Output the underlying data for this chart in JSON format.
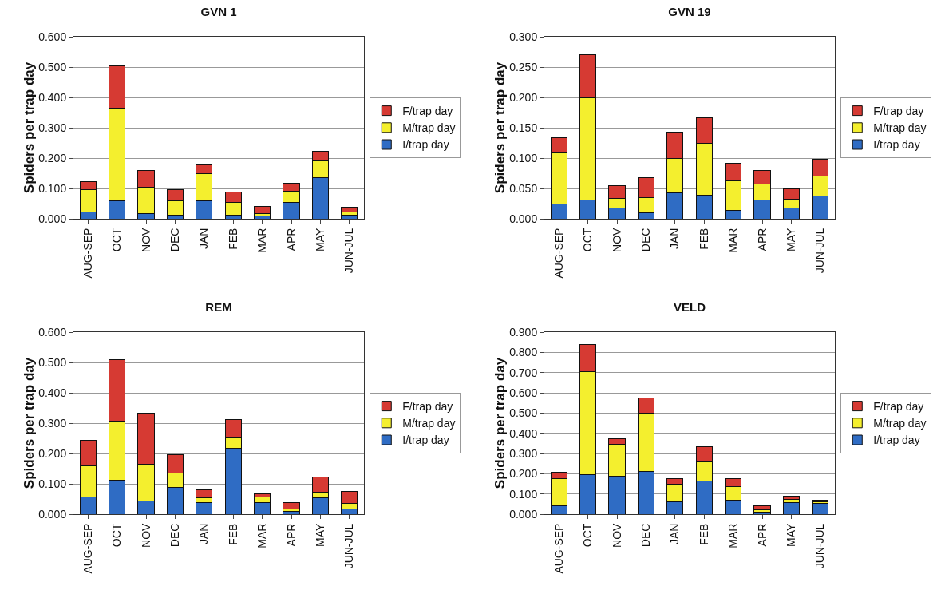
{
  "chart_data": [
    {
      "type": "bar",
      "title": "GVN 1",
      "ylabel": "Spiders per trap day",
      "stacked": true,
      "grid": "y",
      "legend": "right",
      "categories": [
        "AUG-SEP",
        "OCT",
        "NOV",
        "DEC",
        "JAN",
        "FEB",
        "MAR",
        "APR",
        "MAY",
        "JUN-JUL"
      ],
      "ylim": [
        0,
        0.6
      ],
      "yticks": [
        {
          "value": 0,
          "label": "0.000"
        },
        {
          "value": 0.1,
          "label": "0.100"
        },
        {
          "value": 0.2,
          "label": "0.200"
        },
        {
          "value": 0.3,
          "label": "0.300"
        },
        {
          "value": 0.4,
          "label": "0.400"
        },
        {
          "value": 0.5,
          "label": "0.500"
        },
        {
          "value": 0.6,
          "label": "0.600"
        }
      ],
      "series": [
        {
          "name": "I/trap day",
          "color": "#2f6cc4",
          "values": [
            0.022,
            0.06,
            0.018,
            0.013,
            0.058,
            0.013,
            0.008,
            0.053,
            0.135,
            0.012
          ]
        },
        {
          "name": "M/trap day",
          "color": "#f4ef2e",
          "values": [
            0.073,
            0.305,
            0.085,
            0.045,
            0.09,
            0.04,
            0.008,
            0.037,
            0.057,
            0.011
          ]
        },
        {
          "name": "F/trap day",
          "color": "#d63a33",
          "values": [
            0.027,
            0.14,
            0.055,
            0.039,
            0.03,
            0.035,
            0.024,
            0.026,
            0.03,
            0.015
          ]
        }
      ]
    },
    {
      "type": "bar",
      "title": "GVN 19",
      "ylabel": "Spiders per trap day",
      "stacked": true,
      "grid": "y",
      "legend": "right",
      "categories": [
        "AUG-SEP",
        "OCT",
        "NOV",
        "DEC",
        "JAN",
        "FEB",
        "MAR",
        "APR",
        "MAY",
        "JUN-JUL"
      ],
      "ylim": [
        0,
        0.3
      ],
      "yticks": [
        {
          "value": 0,
          "label": "0.000"
        },
        {
          "value": 0.05,
          "label": "0.050"
        },
        {
          "value": 0.1,
          "label": "0.100"
        },
        {
          "value": 0.15,
          "label": "0.150"
        },
        {
          "value": 0.2,
          "label": "0.200"
        },
        {
          "value": 0.25,
          "label": "0.250"
        },
        {
          "value": 0.3,
          "label": "0.300"
        }
      ],
      "series": [
        {
          "name": "I/trap day",
          "color": "#2f6cc4",
          "values": [
            0.024,
            0.031,
            0.018,
            0.01,
            0.043,
            0.039,
            0.014,
            0.031,
            0.018,
            0.037
          ]
        },
        {
          "name": "M/trap day",
          "color": "#f4ef2e",
          "values": [
            0.084,
            0.169,
            0.016,
            0.025,
            0.056,
            0.086,
            0.049,
            0.026,
            0.014,
            0.034
          ]
        },
        {
          "name": "F/trap day",
          "color": "#d63a33",
          "values": [
            0.026,
            0.07,
            0.02,
            0.033,
            0.044,
            0.041,
            0.028,
            0.023,
            0.017,
            0.027
          ]
        }
      ]
    },
    {
      "type": "bar",
      "title": "REM",
      "ylabel": "Spiders per trap day",
      "stacked": true,
      "grid": "y",
      "legend": "right",
      "categories": [
        "AUG-SEP",
        "OCT",
        "NOV",
        "DEC",
        "JAN",
        "FEB",
        "MAR",
        "APR",
        "MAY",
        "JUN-JUL"
      ],
      "ylim": [
        0,
        0.6
      ],
      "yticks": [
        {
          "value": 0,
          "label": "0.000"
        },
        {
          "value": 0.1,
          "label": "0.100"
        },
        {
          "value": 0.2,
          "label": "0.200"
        },
        {
          "value": 0.3,
          "label": "0.300"
        },
        {
          "value": 0.4,
          "label": "0.400"
        },
        {
          "value": 0.5,
          "label": "0.500"
        },
        {
          "value": 0.6,
          "label": "0.600"
        }
      ],
      "series": [
        {
          "name": "I/trap day",
          "color": "#2f6cc4",
          "values": [
            0.056,
            0.112,
            0.043,
            0.088,
            0.038,
            0.218,
            0.038,
            0.008,
            0.053,
            0.016
          ]
        },
        {
          "name": "M/trap day",
          "color": "#f4ef2e",
          "values": [
            0.104,
            0.195,
            0.122,
            0.047,
            0.015,
            0.036,
            0.019,
            0.01,
            0.019,
            0.02
          ]
        },
        {
          "name": "F/trap day",
          "color": "#d63a33",
          "values": [
            0.084,
            0.201,
            0.167,
            0.06,
            0.027,
            0.058,
            0.01,
            0.02,
            0.051,
            0.038
          ]
        }
      ]
    },
    {
      "type": "bar",
      "title": "VELD",
      "ylabel": "Spiders per trap day",
      "stacked": true,
      "grid": "y",
      "legend": "right",
      "categories": [
        "AUG-SEP",
        "OCT",
        "NOV",
        "DEC",
        "JAN",
        "FEB",
        "MAR",
        "APR",
        "MAY",
        "JUN-JUL"
      ],
      "ylim": [
        0,
        0.9
      ],
      "yticks": [
        {
          "value": 0,
          "label": "0.000"
        },
        {
          "value": 0.1,
          "label": "0.100"
        },
        {
          "value": 0.2,
          "label": "0.200"
        },
        {
          "value": 0.3,
          "label": "0.300"
        },
        {
          "value": 0.4,
          "label": "0.400"
        },
        {
          "value": 0.5,
          "label": "0.500"
        },
        {
          "value": 0.6,
          "label": "0.600"
        },
        {
          "value": 0.7,
          "label": "0.700"
        },
        {
          "value": 0.8,
          "label": "0.800"
        },
        {
          "value": 0.9,
          "label": "0.900"
        }
      ],
      "series": [
        {
          "name": "I/trap day",
          "color": "#2f6cc4",
          "values": [
            0.04,
            0.195,
            0.188,
            0.213,
            0.06,
            0.163,
            0.068,
            0.01,
            0.058,
            0.053
          ]
        },
        {
          "name": "M/trap day",
          "color": "#f4ef2e",
          "values": [
            0.135,
            0.508,
            0.159,
            0.285,
            0.09,
            0.097,
            0.069,
            0.01,
            0.014,
            0.009
          ]
        },
        {
          "name": "F/trap day",
          "color": "#d63a33",
          "values": [
            0.033,
            0.135,
            0.028,
            0.077,
            0.026,
            0.075,
            0.039,
            0.02,
            0.018,
            0.006
          ]
        }
      ]
    }
  ]
}
